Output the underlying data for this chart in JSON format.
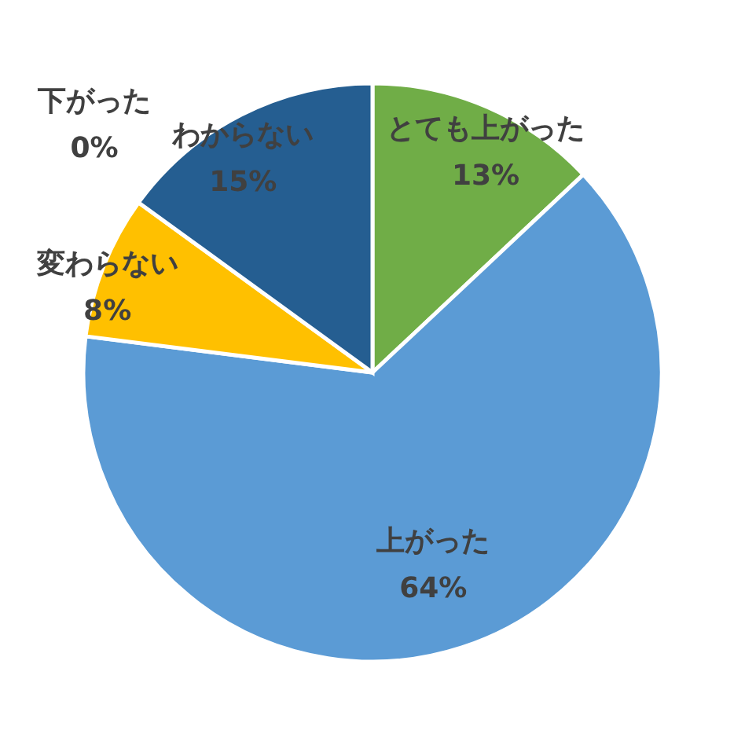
{
  "chart_data": {
    "type": "pie",
    "categories": [
      "とても上がった",
      "上がった",
      "変わらない",
      "下がった",
      "わからない"
    ],
    "values": [
      13,
      64,
      8,
      0,
      15
    ],
    "colors": [
      "#70ad47",
      "#5b9bd5",
      "#ffc000",
      "#a5a5a5",
      "#255e91"
    ],
    "value_labels": [
      "13%",
      "64%",
      "8%",
      "0%",
      "15%"
    ]
  }
}
